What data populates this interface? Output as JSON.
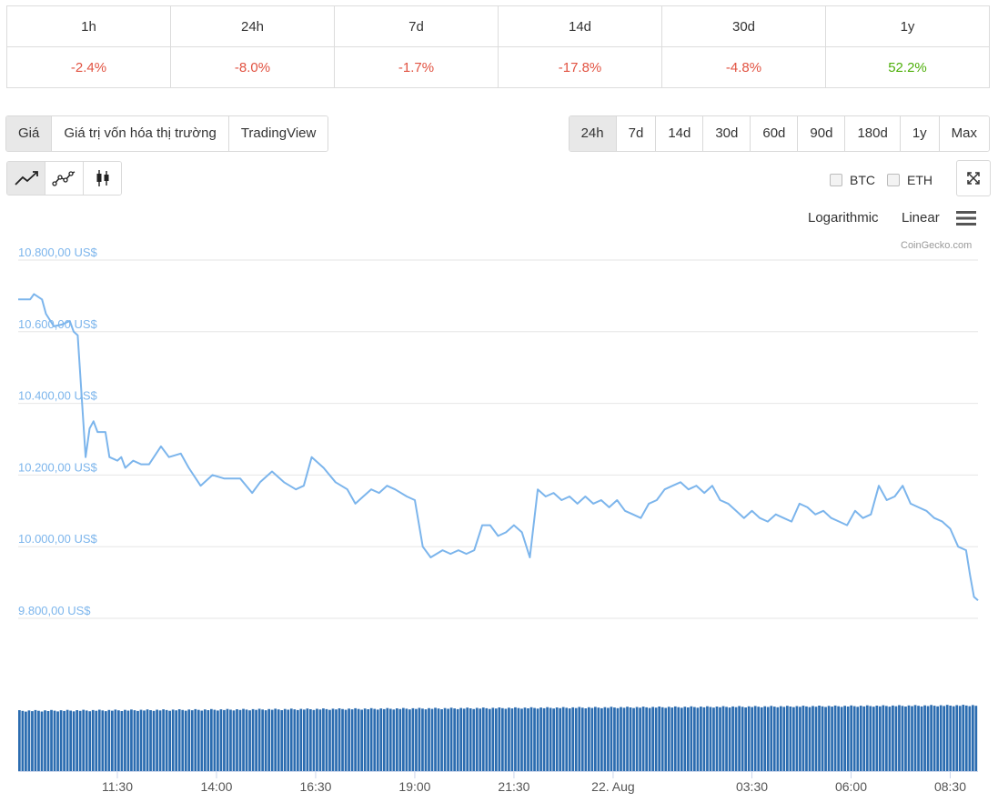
{
  "performance": {
    "periods": [
      "1h",
      "24h",
      "7d",
      "14d",
      "30d",
      "1y"
    ],
    "changes": [
      "-2.4%",
      "-8.0%",
      "-1.7%",
      "-17.8%",
      "-4.8%",
      "52.2%"
    ],
    "colors": {
      "negative": "#e15241",
      "positive": "#4eaf0a"
    }
  },
  "tabs": [
    {
      "label": "Giá",
      "active": true
    },
    {
      "label": "Giá trị vốn hóa thị trường",
      "active": false
    },
    {
      "label": "TradingView",
      "active": false
    }
  ],
  "ranges": [
    {
      "label": "24h",
      "active": true
    },
    {
      "label": "7d",
      "active": false
    },
    {
      "label": "14d",
      "active": false
    },
    {
      "label": "30d",
      "active": false
    },
    {
      "label": "60d",
      "active": false
    },
    {
      "label": "90d",
      "active": false
    },
    {
      "label": "180d",
      "active": false
    },
    {
      "label": "1y",
      "active": false
    },
    {
      "label": "Max",
      "active": false
    }
  ],
  "chart_types": [
    {
      "icon": "line-chart-icon",
      "active": true
    },
    {
      "icon": "line-markers-chart-icon",
      "active": false
    },
    {
      "icon": "candlestick-chart-icon",
      "active": false
    }
  ],
  "compare": {
    "btc": "BTC",
    "eth": "ETH"
  },
  "scale": {
    "log": "Logarithmic",
    "linear": "Linear"
  },
  "credit": "CoinGecko.com",
  "chart_data": {
    "type": "line",
    "ylim": [
      9800,
      10800
    ],
    "yticks": [
      10800,
      10600,
      10400,
      10200,
      10000,
      9800
    ],
    "ytick_labels": [
      "10.800,00 US$",
      "10.600,00 US$",
      "10.400,00 US$",
      "10.200,00 US$",
      "10.000,00 US$",
      "9.800,00 US$"
    ],
    "xlim": [
      9.0,
      33.2
    ],
    "xticks": [
      11.5,
      14.0,
      16.5,
      19.0,
      21.5,
      24.0,
      27.5,
      30.0,
      32.5
    ],
    "xtick_labels": [
      "11:30",
      "14:00",
      "16:30",
      "19:00",
      "21:30",
      "22. Aug",
      "03:30",
      "06:00",
      "08:30"
    ],
    "line_color": "#7cb5ec",
    "volume_color": "#2b6cb0",
    "series": [
      {
        "values": [
          [
            9.0,
            10690
          ],
          [
            9.3,
            10690
          ],
          [
            9.4,
            10705
          ],
          [
            9.6,
            10690
          ],
          [
            9.7,
            10650
          ],
          [
            9.9,
            10615
          ],
          [
            10.1,
            10620
          ],
          [
            10.3,
            10630
          ],
          [
            10.4,
            10600
          ],
          [
            10.5,
            10590
          ],
          [
            10.7,
            10250
          ],
          [
            10.8,
            10330
          ],
          [
            10.9,
            10350
          ],
          [
            11.0,
            10320
          ],
          [
            11.2,
            10320
          ],
          [
            11.3,
            10250
          ],
          [
            11.5,
            10240
          ],
          [
            11.6,
            10250
          ],
          [
            11.7,
            10220
          ],
          [
            11.9,
            10240
          ],
          [
            12.1,
            10230
          ],
          [
            12.3,
            10230
          ],
          [
            12.6,
            10280
          ],
          [
            12.8,
            10250
          ],
          [
            13.1,
            10260
          ],
          [
            13.3,
            10220
          ],
          [
            13.6,
            10170
          ],
          [
            13.9,
            10200
          ],
          [
            14.2,
            10190
          ],
          [
            14.6,
            10190
          ],
          [
            14.9,
            10150
          ],
          [
            15.1,
            10180
          ],
          [
            15.4,
            10210
          ],
          [
            15.7,
            10180
          ],
          [
            16.0,
            10160
          ],
          [
            16.2,
            10170
          ],
          [
            16.4,
            10250
          ],
          [
            16.7,
            10220
          ],
          [
            17.0,
            10180
          ],
          [
            17.3,
            10160
          ],
          [
            17.5,
            10120
          ],
          [
            17.7,
            10140
          ],
          [
            17.9,
            10160
          ],
          [
            18.1,
            10150
          ],
          [
            18.3,
            10170
          ],
          [
            18.5,
            10160
          ],
          [
            18.8,
            10140
          ],
          [
            19.0,
            10130
          ],
          [
            19.2,
            10000
          ],
          [
            19.4,
            9970
          ],
          [
            19.7,
            9990
          ],
          [
            19.9,
            9980
          ],
          [
            20.1,
            9990
          ],
          [
            20.3,
            9980
          ],
          [
            20.5,
            9990
          ],
          [
            20.7,
            10060
          ],
          [
            20.9,
            10060
          ],
          [
            21.1,
            10030
          ],
          [
            21.3,
            10040
          ],
          [
            21.5,
            10060
          ],
          [
            21.7,
            10040
          ],
          [
            21.9,
            9970
          ],
          [
            22.1,
            10160
          ],
          [
            22.3,
            10140
          ],
          [
            22.5,
            10150
          ],
          [
            22.7,
            10130
          ],
          [
            22.9,
            10140
          ],
          [
            23.1,
            10120
          ],
          [
            23.3,
            10140
          ],
          [
            23.5,
            10120
          ],
          [
            23.7,
            10130
          ],
          [
            23.9,
            10110
          ],
          [
            24.1,
            10130
          ],
          [
            24.3,
            10100
          ],
          [
            24.5,
            10090
          ],
          [
            24.7,
            10080
          ],
          [
            24.9,
            10120
          ],
          [
            25.1,
            10130
          ],
          [
            25.3,
            10160
          ],
          [
            25.5,
            10170
          ],
          [
            25.7,
            10180
          ],
          [
            25.9,
            10160
          ],
          [
            26.1,
            10170
          ],
          [
            26.3,
            10150
          ],
          [
            26.5,
            10170
          ],
          [
            26.7,
            10130
          ],
          [
            26.9,
            10120
          ],
          [
            27.1,
            10100
          ],
          [
            27.3,
            10080
          ],
          [
            27.5,
            10100
          ],
          [
            27.7,
            10080
          ],
          [
            27.9,
            10070
          ],
          [
            28.1,
            10090
          ],
          [
            28.3,
            10080
          ],
          [
            28.5,
            10070
          ],
          [
            28.7,
            10120
          ],
          [
            28.9,
            10110
          ],
          [
            29.1,
            10090
          ],
          [
            29.3,
            10100
          ],
          [
            29.5,
            10080
          ],
          [
            29.7,
            10070
          ],
          [
            29.9,
            10060
          ],
          [
            30.1,
            10100
          ],
          [
            30.3,
            10080
          ],
          [
            30.5,
            10090
          ],
          [
            30.7,
            10170
          ],
          [
            30.9,
            10130
          ],
          [
            31.1,
            10140
          ],
          [
            31.3,
            10170
          ],
          [
            31.5,
            10120
          ],
          [
            31.7,
            10110
          ],
          [
            31.9,
            10100
          ],
          [
            32.1,
            10080
          ],
          [
            32.3,
            10070
          ],
          [
            32.5,
            10050
          ],
          [
            32.7,
            10000
          ],
          [
            32.9,
            9990
          ],
          [
            33.0,
            9920
          ],
          [
            33.1,
            9860
          ],
          [
            33.2,
            9850
          ]
        ]
      }
    ]
  }
}
